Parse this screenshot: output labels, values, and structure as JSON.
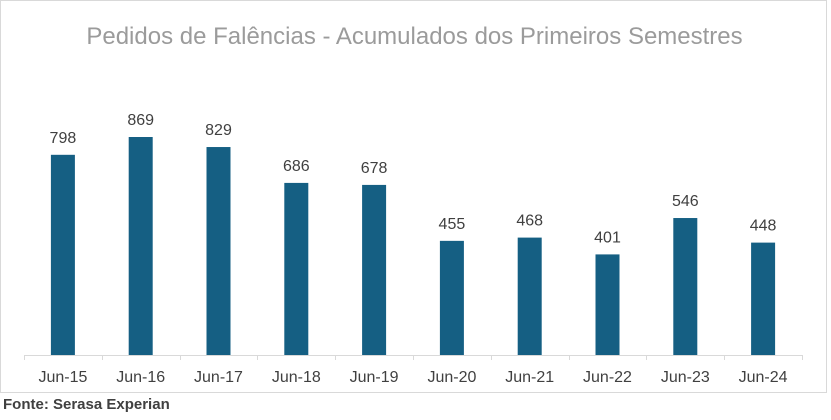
{
  "chart_data": {
    "type": "bar",
    "title": "Pedidos de Falências - Acumulados dos Primeiros Semestres",
    "categories": [
      "Jun-15",
      "Jun-16",
      "Jun-17",
      "Jun-18",
      "Jun-19",
      "Jun-20",
      "Jun-21",
      "Jun-22",
      "Jun-23",
      "Jun-24"
    ],
    "values": [
      798,
      869,
      829,
      686,
      678,
      455,
      468,
      401,
      546,
      448
    ],
    "xlabel": "",
    "ylabel": "",
    "ylim": [
      0,
      1000
    ],
    "grid": false,
    "legend": "none",
    "bar_color": "#155f83",
    "title_color": "#9b9b9b"
  },
  "footer": {
    "source": "Fonte: Serasa Experian"
  }
}
